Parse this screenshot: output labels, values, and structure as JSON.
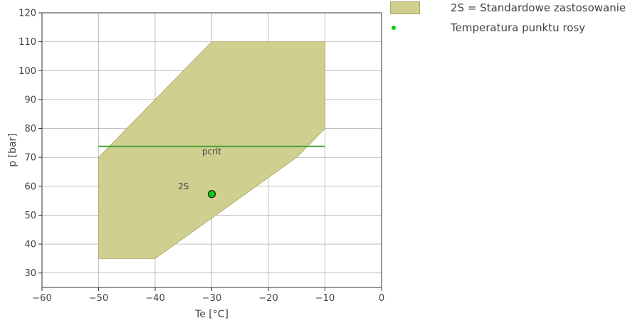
{
  "chart_data": {
    "type": "area",
    "xlabel": "Te [°C]",
    "ylabel": "p [bar]",
    "xlim": [
      -60,
      0
    ],
    "ylim": [
      25,
      120
    ],
    "x_ticks": [
      -60,
      -50,
      -40,
      -30,
      -20,
      -10,
      0
    ],
    "x_tick_labels": [
      "−60",
      "−50",
      "−40",
      "−30",
      "−20",
      "−10",
      "0"
    ],
    "y_ticks": [
      30,
      40,
      50,
      60,
      70,
      80,
      90,
      100,
      110,
      120
    ],
    "grid": true,
    "legend_placement": "top-right outside",
    "series": [
      {
        "name": "2S = Standardowe zastosowanie",
        "type": "polygon",
        "color": "#cfcf8f",
        "outline": "#a6a65e",
        "x": [
          -50,
          -50,
          -30,
          -10,
          -10,
          -15,
          -40,
          -50
        ],
        "y": [
          35,
          70,
          110,
          110,
          80,
          70,
          35,
          35
        ]
      },
      {
        "name": "Temperatura punktu rosy",
        "type": "scatter",
        "color": "#11cc11",
        "x": [
          -30
        ],
        "y": [
          57.3
        ]
      },
      {
        "type": "line",
        "color": "#44a034",
        "x": [
          -50,
          -10
        ],
        "y": [
          73.8,
          73.8
        ]
      }
    ],
    "annotations": [
      {
        "text": "pcrit",
        "x": -30,
        "y": 72
      },
      {
        "text": "2S",
        "x": -35,
        "y": 60
      }
    ]
  }
}
